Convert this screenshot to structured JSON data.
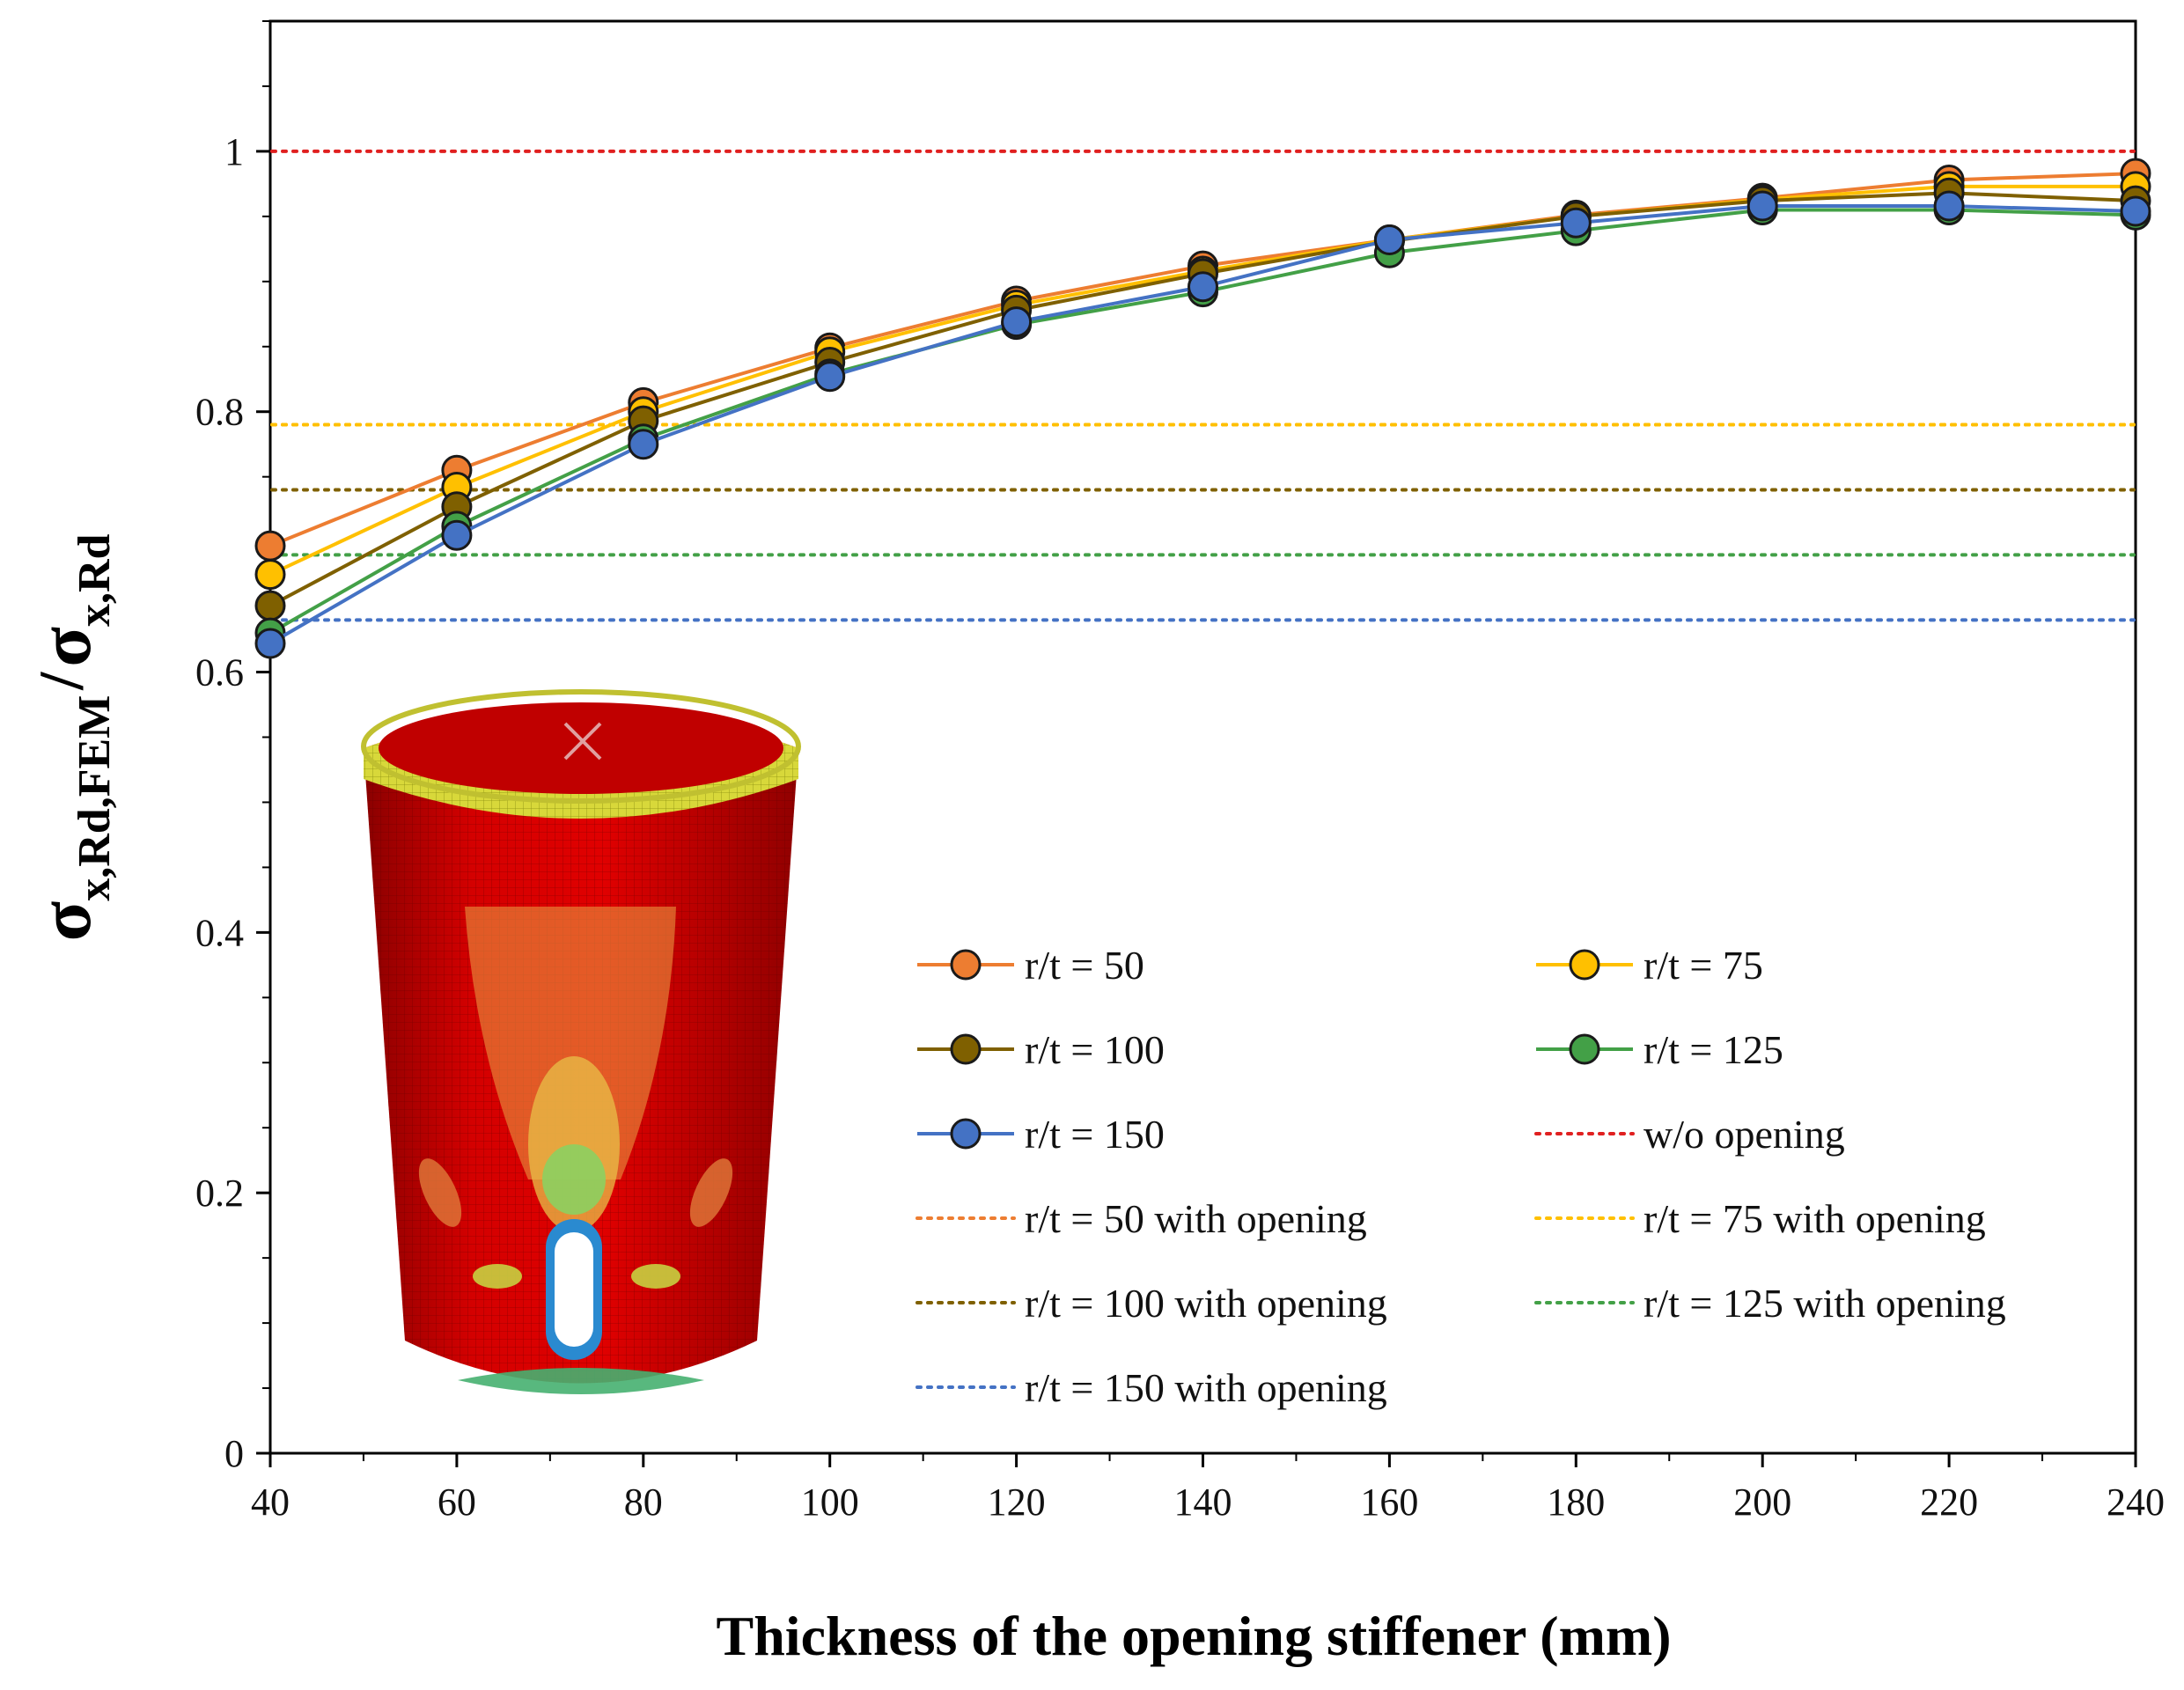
{
  "chart_data": {
    "type": "line",
    "title": "",
    "xlabel": "Thickness of the opening stiffener (mm)",
    "ylabel": {
      "sigma": "σ",
      "num_sub": "x,Rd,FEM",
      "slash": "/",
      "den_sub": "x,Rd"
    },
    "x": [
      40,
      60,
      80,
      100,
      120,
      140,
      160,
      180,
      200,
      220,
      240
    ],
    "xlim": [
      40,
      240
    ],
    "ylim": [
      0,
      1.1
    ],
    "xticks": [
      "40",
      "60",
      "80",
      "100",
      "120",
      "140",
      "160",
      "180",
      "200",
      "220",
      "240"
    ],
    "yticks": [
      {
        "value": 0,
        "label": "0"
      },
      {
        "value": 0.2,
        "label": "0.2"
      },
      {
        "value": 0.4,
        "label": "0.4"
      },
      {
        "value": 0.6,
        "label": "0.6"
      },
      {
        "value": 0.8,
        "label": "0.8"
      },
      {
        "value": 1.0,
        "label": "1"
      }
    ],
    "grid": false,
    "series": [
      {
        "name": "r/t = 50",
        "color": "#ED7D31",
        "values": [
          0.697,
          0.755,
          0.807,
          0.849,
          0.885,
          0.912,
          0.932,
          0.951,
          0.964,
          0.978,
          0.983
        ]
      },
      {
        "name": "r/t = 75",
        "color": "#FFC000",
        "values": [
          0.675,
          0.742,
          0.8,
          0.846,
          0.882,
          0.908,
          0.932,
          0.95,
          0.963,
          0.973,
          0.973
        ]
      },
      {
        "name": "r/t = 100",
        "color": "#7F6000",
        "values": [
          0.651,
          0.727,
          0.793,
          0.838,
          0.878,
          0.906,
          0.931,
          0.95,
          0.962,
          0.968,
          0.962
        ]
      },
      {
        "name": "r/t = 125",
        "color": "#43A047",
        "values": [
          0.63,
          0.712,
          0.779,
          0.829,
          0.867,
          0.892,
          0.922,
          0.939,
          0.955,
          0.955,
          0.951
        ]
      },
      {
        "name": "r/t = 150",
        "color": "#4472C4",
        "values": [
          0.622,
          0.705,
          0.775,
          0.827,
          0.869,
          0.896,
          0.932,
          0.945,
          0.958,
          0.958,
          0.954
        ]
      }
    ],
    "reference_lines": [
      {
        "name": "w/o opening",
        "color": "#E02020",
        "value": 1.0
      },
      {
        "name": "r/t = 50 with opening",
        "color": "#ED7D31",
        "value": 0.79
      },
      {
        "name": "r/t = 75 with opening",
        "color": "#FFC000",
        "value": 0.79
      },
      {
        "name": "r/t = 100 with opening",
        "color": "#7F6000",
        "value": 0.74
      },
      {
        "name": "r/t = 125 with opening",
        "color": "#43A047",
        "value": 0.69
      },
      {
        "name": "r/t = 150 with opening",
        "color": "#4472C4",
        "value": 0.64
      }
    ],
    "legend_order": [
      "r/t = 50",
      "r/t = 75",
      "r/t = 100",
      "r/t = 125",
      "r/t = 150",
      "w/o opening",
      "r/t = 50 with opening",
      "r/t = 75 with opening",
      "r/t = 100 with opening",
      "r/t = 125 with opening",
      "r/t = 150 with opening"
    ],
    "legend_placement": "lower-right",
    "inset": "FEM contour plot of cylindrical shell with opening"
  }
}
